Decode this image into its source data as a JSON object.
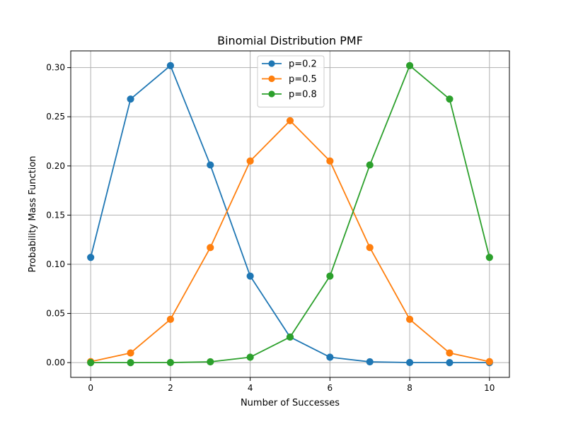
{
  "chart_data": {
    "type": "line",
    "title": "Binomial Distribution PMF",
    "xlabel": "Number of Successes",
    "ylabel": "Probability Mass Function",
    "x": [
      0,
      1,
      2,
      3,
      4,
      5,
      6,
      7,
      8,
      9,
      10
    ],
    "xlim": [
      -0.5,
      10.5
    ],
    "ylim": [
      -0.015,
      0.317
    ],
    "xticks": [
      0,
      2,
      4,
      6,
      8,
      10
    ],
    "yticks": [
      0.0,
      0.05,
      0.1,
      0.15,
      0.2,
      0.25,
      0.3
    ],
    "ytick_labels": [
      "0.00",
      "0.05",
      "0.10",
      "0.15",
      "0.20",
      "0.25",
      "0.30"
    ],
    "grid": true,
    "legend_position": "top-center",
    "series": [
      {
        "name": "p=0.2",
        "color": "#1f77b4",
        "values": [
          0.107,
          0.268,
          0.302,
          0.201,
          0.088,
          0.026,
          0.0055,
          0.00079,
          7.4e-05,
          4.1e-06,
          1e-07
        ]
      },
      {
        "name": "p=0.5",
        "color": "#ff7f0e",
        "values": [
          0.00098,
          0.0098,
          0.044,
          0.117,
          0.205,
          0.246,
          0.205,
          0.117,
          0.044,
          0.0098,
          0.00098
        ]
      },
      {
        "name": "p=0.8",
        "color": "#2ca02c",
        "values": [
          1e-07,
          4.1e-06,
          7.4e-05,
          0.00079,
          0.0055,
          0.026,
          0.088,
          0.201,
          0.302,
          0.268,
          0.107
        ]
      }
    ]
  }
}
